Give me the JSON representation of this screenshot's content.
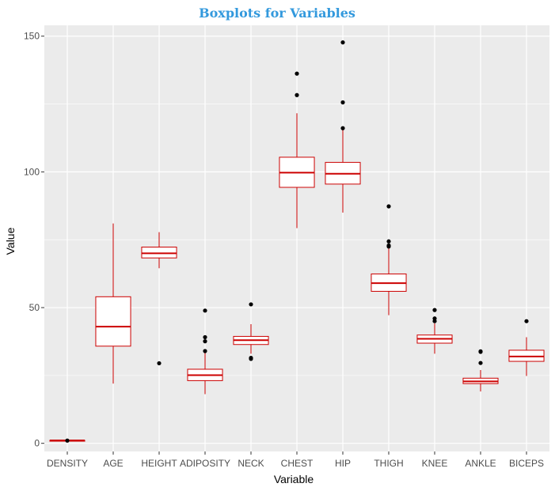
{
  "chart_data": {
    "type": "boxplot",
    "title": "Boxplots for Variables",
    "xlabel": "Variable",
    "ylabel": "Value",
    "ylim": [
      -3,
      154
    ],
    "yticks": [
      0,
      50,
      100,
      150
    ],
    "grid": true,
    "colors": {
      "panel": "#EBEBEB",
      "grid": "#FFFFFF",
      "box": "#CC0000",
      "title": "#3399DD",
      "outlier": "#000000"
    },
    "categories": [
      "DENSITY",
      "AGE",
      "HEIGHT",
      "ADIPOSITY",
      "NECK",
      "CHEST",
      "HIP",
      "THIGH",
      "KNEE",
      "ANKLE",
      "BICEPS"
    ],
    "boxes": [
      {
        "label": "DENSITY",
        "min": 1.0,
        "q1": 1.04,
        "median": 1.06,
        "q3": 1.07,
        "max": 1.1,
        "outliers": [
          1.0
        ]
      },
      {
        "label": "AGE",
        "min": 22,
        "q1": 35.8,
        "median": 43,
        "q3": 54,
        "max": 81,
        "outliers": []
      },
      {
        "label": "HEIGHT",
        "min": 64.5,
        "q1": 68.3,
        "median": 70,
        "q3": 72.3,
        "max": 77.8,
        "outliers": [
          29.5
        ]
      },
      {
        "label": "ADIPOSITY",
        "min": 18.1,
        "q1": 23.1,
        "median": 25.1,
        "q3": 27.3,
        "max": 33.9,
        "outliers": [
          37.6,
          39.1,
          48.9,
          34.0
        ]
      },
      {
        "label": "NECK",
        "min": 33.0,
        "q1": 36.4,
        "median": 38.0,
        "q3": 39.4,
        "max": 43.9,
        "outliers": [
          31.1,
          31.5,
          51.2
        ]
      },
      {
        "label": "CHEST",
        "min": 79.3,
        "q1": 94.3,
        "median": 99.7,
        "q3": 105.4,
        "max": 121.6,
        "outliers": [
          128.3,
          136.2
        ]
      },
      {
        "label": "HIP",
        "min": 85.0,
        "q1": 95.5,
        "median": 99.3,
        "q3": 103.5,
        "max": 115.5,
        "outliers": [
          116.1,
          125.6,
          147.7
        ]
      },
      {
        "label": "THIGH",
        "min": 47.2,
        "q1": 56.0,
        "median": 59.0,
        "q3": 62.4,
        "max": 72.0,
        "outliers": [
          72.5,
          72.9,
          74.4,
          87.3
        ]
      },
      {
        "label": "KNEE",
        "min": 33.0,
        "q1": 36.9,
        "median": 38.5,
        "q3": 39.9,
        "max": 44.2,
        "outliers": [
          45.0,
          46.0,
          49.1
        ]
      },
      {
        "label": "ANKLE",
        "min": 19.1,
        "q1": 22.0,
        "median": 22.8,
        "q3": 24.0,
        "max": 27.0,
        "outliers": [
          29.6,
          33.7,
          33.9
        ]
      },
      {
        "label": "BICEPS",
        "min": 24.8,
        "q1": 30.2,
        "median": 32.0,
        "q3": 34.3,
        "max": 39.1,
        "outliers": [
          45.0
        ]
      }
    ]
  }
}
